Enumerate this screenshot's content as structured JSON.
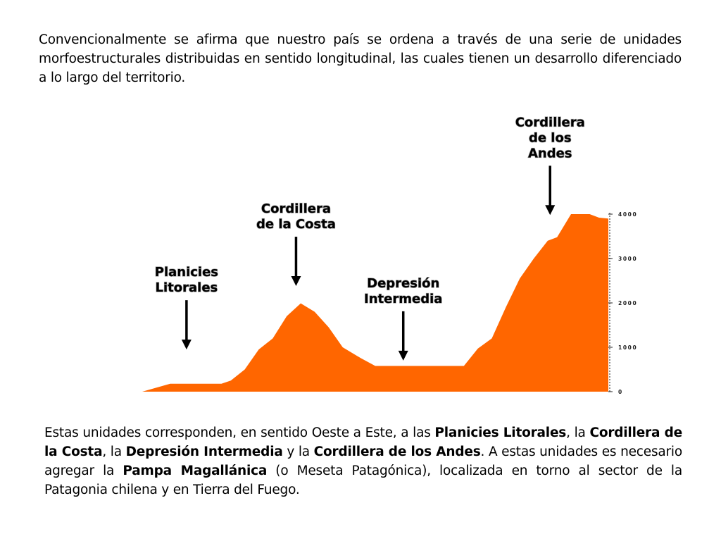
{
  "intro_text": "Convencionalmente se afirma que nuestro país se ordena a través de una serie de unidades morfoestructurales distribuidas en sentido longitudinal, las cuales tienen un desarrollo diferenciado a lo largo del territorio.",
  "outro": {
    "t1": "Estas unidades corresponden, en sentido Oeste a Este, a las ",
    "b1": "Planicies Litorales",
    "t2": ", la ",
    "b2": "Cordillera de la Costa",
    "t3": ", la ",
    "b3": "Depresión Intermedia",
    "t4": " y la ",
    "b4": "Cordillera de los Andes",
    "t5": ". A estas unidades es necesario agregar la ",
    "b5": "Pampa Magallánica",
    "t6": " (o Meseta Patagónica), localizada en torno al sector de la Patagonia chilena y en Tierra del Fuego."
  },
  "colors": {
    "terrain": "#FF6600",
    "arrow": "#000000",
    "axis": "#222222"
  },
  "chart_data": {
    "type": "area",
    "title": "",
    "xlabel": "",
    "ylabel": "",
    "ylim": [
      0,
      4000
    ],
    "y_ticks": [
      0,
      1000,
      2000,
      3000,
      4000
    ],
    "y_tick_labels": [
      "0",
      "1000",
      "2000",
      "3000",
      "4000"
    ],
    "xlim": [
      0,
      100
    ],
    "series": [
      {
        "values": [
          {
            "x": 0,
            "y": 0
          },
          {
            "x": 6,
            "y": 180
          },
          {
            "x": 17,
            "y": 180
          },
          {
            "x": 19,
            "y": 250
          },
          {
            "x": 22,
            "y": 500
          },
          {
            "x": 25,
            "y": 950
          },
          {
            "x": 28,
            "y": 1200
          },
          {
            "x": 31,
            "y": 1700
          },
          {
            "x": 34,
            "y": 1990
          },
          {
            "x": 37,
            "y": 1800
          },
          {
            "x": 40,
            "y": 1450
          },
          {
            "x": 43,
            "y": 1000
          },
          {
            "x": 47,
            "y": 750
          },
          {
            "x": 50,
            "y": 580
          },
          {
            "x": 60,
            "y": 580
          },
          {
            "x": 69,
            "y": 580
          },
          {
            "x": 72,
            "y": 970
          },
          {
            "x": 75,
            "y": 1200
          },
          {
            "x": 78,
            "y": 1900
          },
          {
            "x": 81,
            "y": 2550
          },
          {
            "x": 84,
            "y": 3000
          },
          {
            "x": 87,
            "y": 3400
          },
          {
            "x": 89,
            "y": 3480
          },
          {
            "x": 92,
            "y": 4000
          },
          {
            "x": 96,
            "y": 4000
          },
          {
            "x": 98,
            "y": 3920
          },
          {
            "x": 100,
            "y": 3900
          }
        ]
      }
    ],
    "annotations": [
      {
        "name": "planicies-litorales",
        "lines": [
          "Planicies",
          "Litorales"
        ],
        "x": 9.5,
        "y": 950
      },
      {
        "name": "cordillera-costa",
        "lines": [
          "Cordillera",
          "de la Costa"
        ],
        "x": 33,
        "y": 2380
      },
      {
        "name": "depresion-intermedia",
        "lines": [
          "Depresión",
          "Intermedia"
        ],
        "x": 56,
        "y": 700
      },
      {
        "name": "cordillera-andes",
        "lines": [
          "Cordillera",
          "de los",
          "Andes"
        ],
        "x": 87.5,
        "y": 3980
      }
    ]
  }
}
